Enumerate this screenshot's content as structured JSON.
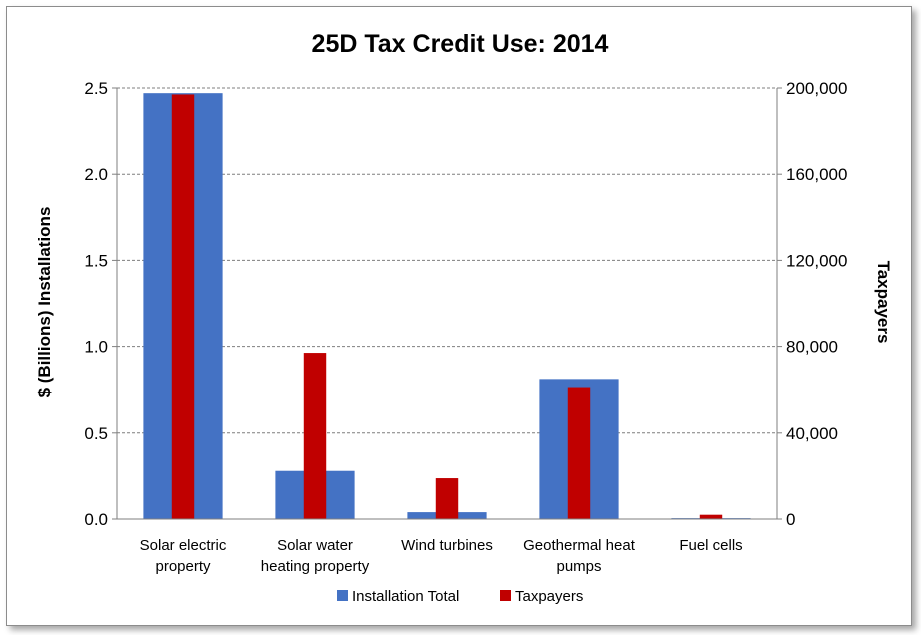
{
  "chart_data": {
    "type": "bar",
    "title": "25D Tax Credit Use: 2014",
    "categories": [
      [
        "Solar electric",
        "property"
      ],
      [
        "Solar water",
        "heating property"
      ],
      [
        "Wind turbines"
      ],
      [
        "Geothermal heat",
        "pumps"
      ],
      [
        "Fuel cells"
      ]
    ],
    "y_left": {
      "label": "$ (Billions) Installations",
      "ylim": [
        0,
        2.5
      ],
      "ticks": [
        "0.0",
        "0.5",
        "1.0",
        "1.5",
        "2.0",
        "2.5"
      ]
    },
    "y_right": {
      "label": "Taxpayers",
      "ylim": [
        0,
        200000
      ],
      "ticks": [
        "0",
        "40,000",
        "80,000",
        "120,000",
        "160,000",
        "200,000"
      ]
    },
    "series": [
      {
        "name": "Installation Total",
        "axis": "left",
        "color": "#4472C4",
        "values": [
          2.47,
          0.28,
          0.04,
          0.81,
          0.005
        ]
      },
      {
        "name": "Taxpayers",
        "axis": "right",
        "color": "#C00000",
        "values": [
          197000,
          77000,
          19000,
          61000,
          2000
        ]
      }
    ],
    "grid": true,
    "legend_position": "bottom"
  }
}
